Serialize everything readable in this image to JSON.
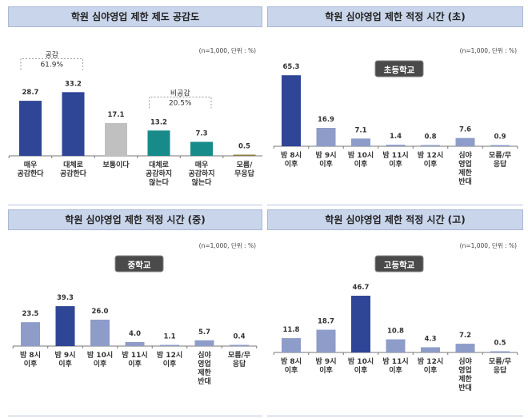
{
  "colors": {
    "dark": "#2f4596",
    "light": "#8e9cc9",
    "gray": "#c0c0c0",
    "teal": "#178a8a",
    "olive": "#8d7a3c"
  },
  "chart_data": [
    {
      "type": "bar",
      "title": "학원 심야영업 제한 제도 공감도",
      "note": "(n=1,000, 단위 : %)",
      "categories": [
        [
          "매우",
          "공감한다"
        ],
        [
          "대체로",
          "공감한다"
        ],
        [
          "보통이다"
        ],
        [
          "대체로",
          "공감하지",
          "않는다"
        ],
        [
          "매우",
          "공감하지",
          "않는다"
        ],
        [
          "모름/",
          "무응답"
        ]
      ],
      "values": [
        28.7,
        33.2,
        17.1,
        13.2,
        7.3,
        0.5
      ],
      "value_labels": [
        "28.7",
        "33.2",
        "17.1",
        "13.2",
        "7.3",
        "0.5"
      ],
      "bar_colors": [
        "dark",
        "dark",
        "gray",
        "teal",
        "teal",
        "olive"
      ],
      "annotations": [
        {
          "label": [
            "공감",
            "61.9%"
          ],
          "bars": [
            0,
            1
          ]
        },
        {
          "label": [
            "비공감",
            "20.5%"
          ],
          "bars": [
            3,
            4
          ]
        }
      ]
    },
    {
      "type": "bar",
      "title": "학원 심야영업 제한 적정 시간 (초)",
      "note": "(n=1,000, 단위 : %)",
      "badge": "초등학교",
      "categories": [
        [
          "밤 8시",
          "이후"
        ],
        [
          "밤 9시",
          "이후"
        ],
        [
          "밤 10시",
          "이후"
        ],
        [
          "밤 11시",
          "이후"
        ],
        [
          "밤 12시",
          "이후"
        ],
        [
          "심야",
          "영업",
          "제한",
          "반대"
        ],
        [
          "모름/무",
          "응답"
        ]
      ],
      "values": [
        65.3,
        16.9,
        7.1,
        1.4,
        0.8,
        7.6,
        0.9
      ],
      "value_labels": [
        "65.3",
        "16.9",
        "7.1",
        "1.4",
        "0.8",
        "7.6",
        "0.9"
      ],
      "bar_colors": [
        "dark",
        "light",
        "light",
        "light",
        "light",
        "light",
        "light"
      ]
    },
    {
      "type": "bar",
      "title": "학원 심야영업 제한 적정 시간 (중)",
      "note": "(n=1,000, 단위 : %)",
      "badge": "중학교",
      "categories": [
        [
          "밤 8시",
          "이후"
        ],
        [
          "밤 9시",
          "이후"
        ],
        [
          "밤 10시",
          "이후"
        ],
        [
          "밤 11시",
          "이후"
        ],
        [
          "밤 12시",
          "이후"
        ],
        [
          "심야",
          "영업",
          "제한",
          "반대"
        ],
        [
          "모름/무",
          "응답"
        ]
      ],
      "values": [
        23.5,
        39.3,
        26.0,
        4.0,
        1.1,
        5.7,
        0.4
      ],
      "value_labels": [
        "23.5",
        "39.3",
        "26.0",
        "4.0",
        "1.1",
        "5.7",
        "0.4"
      ],
      "bar_colors": [
        "light",
        "dark",
        "light",
        "light",
        "light",
        "light",
        "light"
      ]
    },
    {
      "type": "bar",
      "title": "학원 심야영업 제한 적정 시간 (고)",
      "note": "(n=1,000, 단위 : %)",
      "badge": "고등학교",
      "categories": [
        [
          "밤 8시",
          "이후"
        ],
        [
          "밤 9시",
          "이후"
        ],
        [
          "밤 10시",
          "이후"
        ],
        [
          "밤 11시",
          "이후"
        ],
        [
          "밤 12시",
          "이후"
        ],
        [
          "심야",
          "영업",
          "제한",
          "반대"
        ],
        [
          "모름/무",
          "응답"
        ]
      ],
      "values": [
        11.8,
        18.7,
        46.7,
        10.8,
        4.3,
        7.2,
        0.5
      ],
      "value_labels": [
        "11.8",
        "18.7",
        "46.7",
        "10.8",
        "4.3",
        "7.2",
        "0.5"
      ],
      "bar_colors": [
        "light",
        "light",
        "dark",
        "light",
        "light",
        "light",
        "light"
      ]
    }
  ]
}
